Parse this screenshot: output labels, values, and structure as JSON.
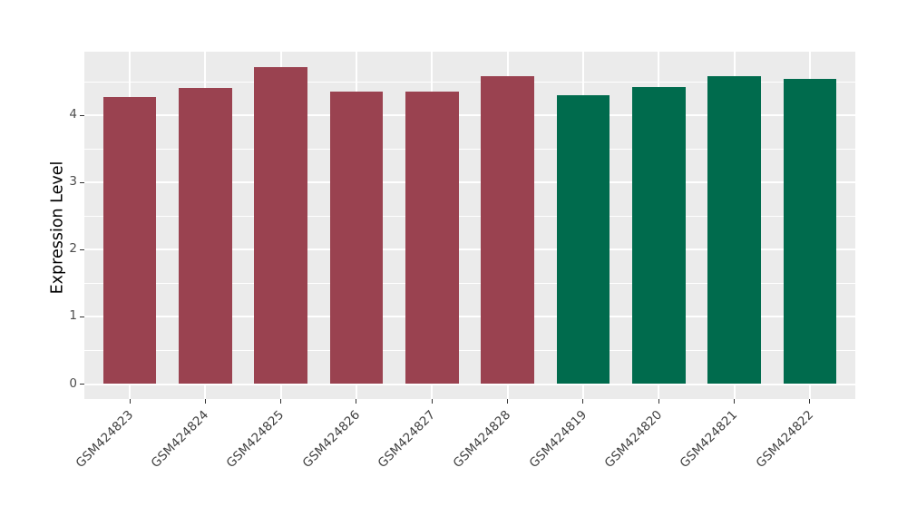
{
  "chart_data": {
    "type": "bar",
    "title": "",
    "xlabel": "",
    "ylabel": "Expression Level",
    "categories": [
      "GSM424823",
      "GSM424824",
      "GSM424825",
      "GSM424826",
      "GSM424827",
      "GSM424828",
      "GSM424819",
      "GSM424820",
      "GSM424821",
      "GSM424822"
    ],
    "values": [
      4.27,
      4.41,
      4.72,
      4.35,
      4.35,
      4.59,
      4.3,
      4.42,
      4.58,
      4.55
    ],
    "bar_colors": [
      "#9A4250",
      "#9A4250",
      "#9A4250",
      "#9A4250",
      "#9A4250",
      "#9A4250",
      "#006B4D",
      "#006B4D",
      "#006B4D",
      "#006B4D"
    ],
    "group_colors": {
      "maroon_group": "#9A4250",
      "green_group": "#006B4D"
    },
    "yticks": [
      0,
      1,
      2,
      3,
      4
    ],
    "ylim": [
      0,
      4.96
    ],
    "grid": true,
    "legend": "none",
    "panel_background": "#EBEBEB",
    "gridline_color": "#FFFFFF",
    "axis_text_color": "#4D4D4D"
  }
}
